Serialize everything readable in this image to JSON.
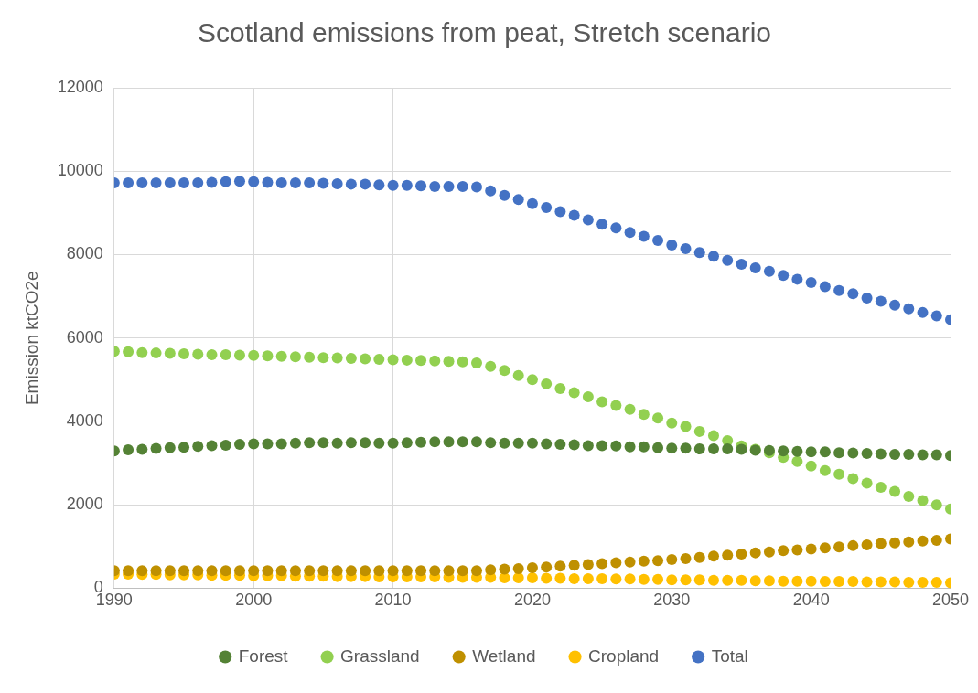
{
  "chart_data": {
    "type": "scatter",
    "title": "Scotland emissions from peat, Stretch scenario",
    "ylabel": "Emission ktCO2e",
    "x": [
      1990,
      1991,
      1992,
      1993,
      1994,
      1995,
      1996,
      1997,
      1998,
      1999,
      2000,
      2001,
      2002,
      2003,
      2004,
      2005,
      2006,
      2007,
      2008,
      2009,
      2010,
      2011,
      2012,
      2013,
      2014,
      2015,
      2016,
      2017,
      2018,
      2019,
      2020,
      2021,
      2022,
      2023,
      2024,
      2025,
      2026,
      2027,
      2028,
      2029,
      2030,
      2031,
      2032,
      2033,
      2034,
      2035,
      2036,
      2037,
      2038,
      2039,
      2040,
      2041,
      2042,
      2043,
      2044,
      2045,
      2046,
      2047,
      2048,
      2049,
      2050
    ],
    "xlim": [
      1990,
      2050
    ],
    "xticks": [
      1990,
      2000,
      2010,
      2020,
      2030,
      2040,
      2050
    ],
    "ylim": [
      0,
      12000
    ],
    "yticks": [
      0,
      2000,
      4000,
      6000,
      8000,
      10000,
      12000
    ],
    "grid": true,
    "legend": "bottom",
    "marker": "circle",
    "series": [
      {
        "name": "Forest",
        "color": "#548235",
        "values": [
          3290,
          3320,
          3330,
          3350,
          3370,
          3380,
          3400,
          3420,
          3430,
          3450,
          3460,
          3460,
          3460,
          3480,
          3490,
          3490,
          3480,
          3490,
          3490,
          3480,
          3480,
          3490,
          3500,
          3510,
          3510,
          3510,
          3510,
          3490,
          3480,
          3480,
          3480,
          3460,
          3450,
          3440,
          3420,
          3420,
          3410,
          3390,
          3390,
          3370,
          3360,
          3360,
          3340,
          3340,
          3340,
          3330,
          3310,
          3300,
          3290,
          3280,
          3270,
          3270,
          3250,
          3240,
          3230,
          3220,
          3210,
          3210,
          3200,
          3200,
          3180
        ]
      },
      {
        "name": "Grassland",
        "color": "#92d050",
        "values": [
          5680,
          5670,
          5650,
          5640,
          5630,
          5620,
          5610,
          5600,
          5600,
          5590,
          5580,
          5570,
          5560,
          5550,
          5540,
          5530,
          5520,
          5510,
          5500,
          5490,
          5480,
          5470,
          5460,
          5450,
          5440,
          5430,
          5400,
          5320,
          5220,
          5100,
          5000,
          4900,
          4790,
          4690,
          4590,
          4470,
          4380,
          4290,
          4170,
          4080,
          3960,
          3880,
          3760,
          3660,
          3540,
          3410,
          3330,
          3250,
          3140,
          3040,
          2930,
          2820,
          2730,
          2630,
          2520,
          2420,
          2320,
          2200,
          2100,
          2000,
          1900
        ]
      },
      {
        "name": "Wetland",
        "color": "#bf9000",
        "values": [
          420,
          420,
          420,
          420,
          420,
          420,
          420,
          420,
          420,
          420,
          420,
          420,
          420,
          420,
          420,
          420,
          420,
          420,
          420,
          420,
          420,
          420,
          420,
          420,
          420,
          420,
          420,
          440,
          460,
          470,
          490,
          510,
          530,
          550,
          570,
          590,
          610,
          630,
          650,
          660,
          690,
          710,
          740,
          770,
          790,
          820,
          850,
          870,
          900,
          920,
          940,
          970,
          990,
          1020,
          1040,
          1070,
          1090,
          1110,
          1130,
          1150,
          1180
        ]
      },
      {
        "name": "Cropland",
        "color": "#ffc000",
        "values": [
          340,
          340,
          330,
          330,
          320,
          320,
          320,
          310,
          310,
          310,
          300,
          300,
          300,
          290,
          290,
          290,
          280,
          280,
          280,
          270,
          270,
          270,
          270,
          270,
          260,
          260,
          260,
          260,
          250,
          250,
          250,
          240,
          240,
          230,
          230,
          230,
          220,
          220,
          210,
          210,
          200,
          200,
          200,
          190,
          190,
          190,
          180,
          180,
          170,
          170,
          170,
          160,
          160,
          160,
          150,
          150,
          150,
          140,
          140,
          140,
          130
        ]
      },
      {
        "name": "Total",
        "color": "#4472c4",
        "values": [
          9720,
          9720,
          9720,
          9720,
          9720,
          9720,
          9720,
          9730,
          9750,
          9760,
          9750,
          9730,
          9720,
          9720,
          9720,
          9710,
          9700,
          9690,
          9690,
          9670,
          9660,
          9660,
          9650,
          9630,
          9630,
          9630,
          9620,
          9530,
          9420,
          9320,
          9220,
          9130,
          9030,
          8940,
          8830,
          8730,
          8640,
          8530,
          8440,
          8340,
          8230,
          8140,
          8050,
          7960,
          7860,
          7770,
          7680,
          7600,
          7500,
          7410,
          7330,
          7230,
          7140,
          7060,
          6960,
          6880,
          6790,
          6700,
          6610,
          6530,
          6440
        ]
      }
    ]
  }
}
